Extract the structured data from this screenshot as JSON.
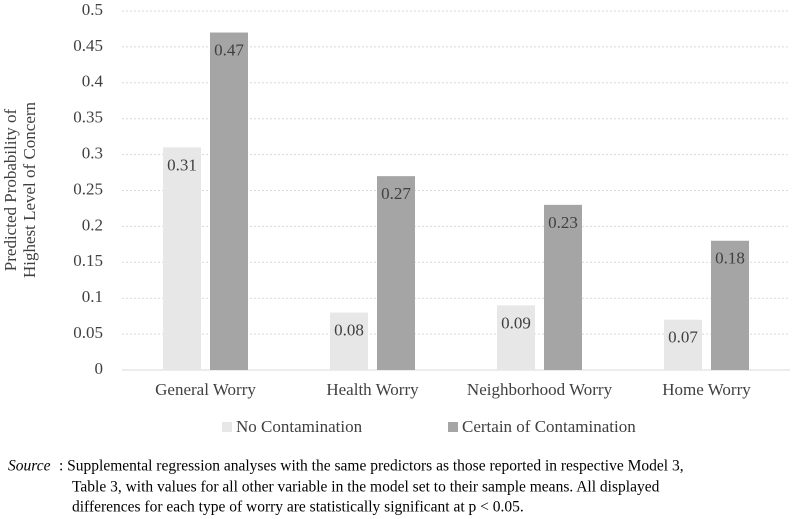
{
  "chart_data": {
    "type": "bar",
    "y_label": [
      "Predicted Probability of",
      "Highest Level of Concern"
    ],
    "categories": [
      "General Worry",
      "Health Worry",
      "Neighborhood Worry",
      "Home Worry"
    ],
    "series": [
      {
        "name": "No Contamination",
        "color": "#e7e7e7",
        "values": [
          0.31,
          0.08,
          0.09,
          0.07
        ]
      },
      {
        "name": "Certain of Contamination",
        "color": "#a5a5a5",
        "values": [
          0.47,
          0.27,
          0.23,
          0.18
        ]
      }
    ],
    "ylim": [
      0,
      0.5
    ],
    "yticks": [
      0,
      0.05,
      0.1,
      0.15,
      0.2,
      0.25,
      0.3,
      0.35,
      0.4,
      0.45,
      0.5
    ],
    "grid": true,
    "legend": "bottom",
    "data_labels": true
  },
  "note": {
    "label": "Source",
    "lines": [
      ":  Supplemental regression analyses with the same predictors as those reported in respective Model 3,",
      "Table 3, with values for all other variable in the model set to their sample means. All displayed",
      "differences for each type of worry are statistically significant at p < 0.05."
    ]
  }
}
